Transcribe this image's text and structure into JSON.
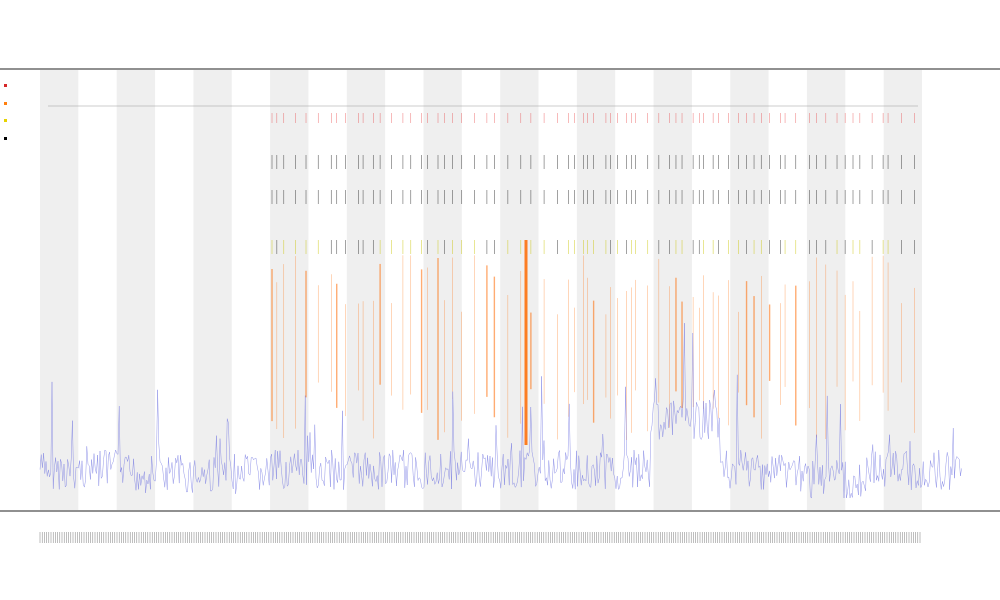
{
  "chart_data": {
    "type": "line",
    "title": "",
    "subtitle_1": "",
    "subtitle_2": "",
    "xlabel": "",
    "ylabel": "",
    "grid": false,
    "legend": {
      "placement": "top-left",
      "entries": [
        {
          "name": "",
          "color": "#d62728"
        },
        {
          "name": "",
          "color": "#ff7f0e"
        },
        {
          "name": "",
          "color": "#e6d200"
        },
        {
          "name": "",
          "color": "#000000"
        }
      ]
    },
    "x_range": [
      0,
      960
    ],
    "band_count": 23,
    "colors": {
      "baseline_series": "#6f73e0",
      "spike_series": "#ff6a00",
      "annotation_series": "#e41a1c",
      "band": "#efefef"
    }
  }
}
